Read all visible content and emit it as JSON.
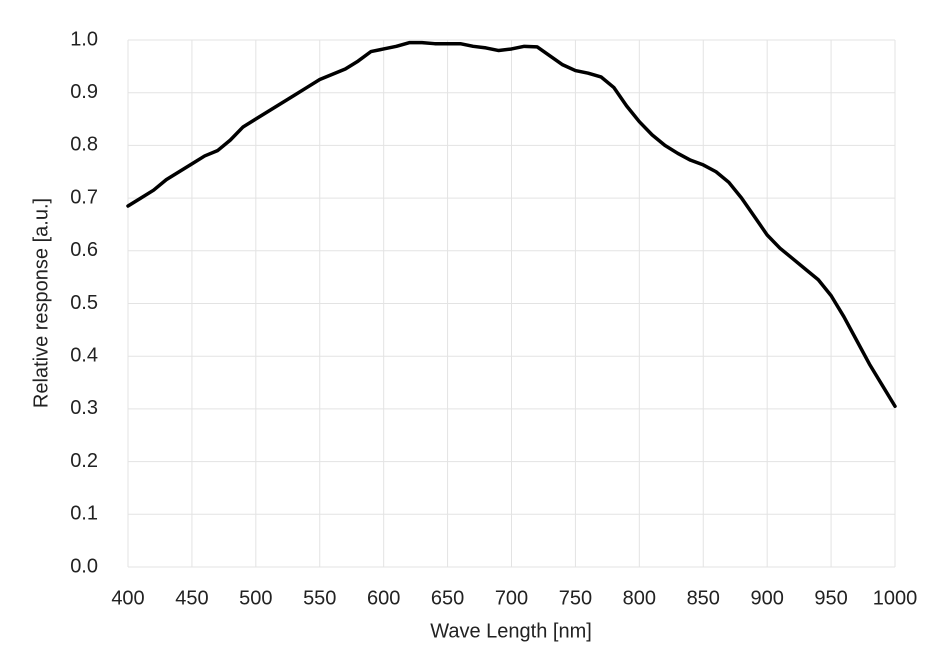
{
  "chart_data": {
    "type": "line",
    "x_label": "Wave Length [nm]",
    "y_label": "Relative response [a.u.]",
    "x": [
      400,
      410,
      420,
      430,
      440,
      450,
      460,
      470,
      480,
      490,
      500,
      510,
      520,
      530,
      540,
      550,
      560,
      570,
      580,
      590,
      600,
      610,
      620,
      630,
      640,
      650,
      660,
      670,
      680,
      690,
      700,
      710,
      720,
      730,
      740,
      750,
      760,
      770,
      780,
      790,
      800,
      810,
      820,
      830,
      840,
      850,
      860,
      870,
      880,
      890,
      900,
      910,
      920,
      930,
      940,
      950,
      960,
      970,
      980,
      990,
      1000
    ],
    "series": [
      {
        "color": "#000000",
        "values": [
          0.685,
          0.7,
          0.715,
          0.735,
          0.75,
          0.765,
          0.78,
          0.79,
          0.81,
          0.835,
          0.85,
          0.865,
          0.88,
          0.895,
          0.91,
          0.925,
          0.935,
          0.945,
          0.96,
          0.978,
          0.983,
          0.988,
          0.995,
          0.995,
          0.993,
          0.993,
          0.993,
          0.988,
          0.985,
          0.98,
          0.983,
          0.988,
          0.987,
          0.97,
          0.953,
          0.942,
          0.937,
          0.93,
          0.91,
          0.875,
          0.845,
          0.82,
          0.8,
          0.785,
          0.772,
          0.763,
          0.75,
          0.73,
          0.7,
          0.665,
          0.63,
          0.605,
          0.585,
          0.565,
          0.545,
          0.515,
          0.475,
          0.43,
          0.385,
          0.345,
          0.305
        ]
      }
    ],
    "xlim": [
      400,
      1000
    ],
    "xticks": [
      400,
      450,
      500,
      550,
      600,
      650,
      700,
      750,
      800,
      850,
      900,
      950,
      1000
    ],
    "ylim": [
      0,
      1
    ],
    "yticks": [
      {
        "value": 0,
        "label": "0.0"
      },
      0.1,
      0.2,
      0.3,
      0.4,
      0.5,
      0.6,
      0.7,
      0.8,
      0.9,
      {
        "value": 1,
        "label": "1.0"
      }
    ],
    "grid": true
  }
}
